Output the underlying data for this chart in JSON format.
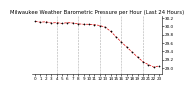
{
  "title": "Milwaukee Weather Barometric Pressure per Hour (Last 24 Hours)",
  "hours": [
    0,
    1,
    2,
    3,
    4,
    5,
    6,
    7,
    8,
    9,
    10,
    11,
    12,
    13,
    14,
    15,
    16,
    17,
    18,
    19,
    20,
    21,
    22,
    23
  ],
  "pressure": [
    30.12,
    30.1,
    30.11,
    30.08,
    30.09,
    30.07,
    30.09,
    30.08,
    30.06,
    30.05,
    30.05,
    30.04,
    30.02,
    29.98,
    29.88,
    29.75,
    29.62,
    29.5,
    29.38,
    29.26,
    29.15,
    29.08,
    29.02,
    29.05
  ],
  "line_color": "#dd0000",
  "marker_color": "#000000",
  "background_color": "#ffffff",
  "grid_color": "#999999",
  "title_fontsize": 3.8,
  "tick_fontsize": 3.0,
  "ylim": [
    28.85,
    30.25
  ],
  "ytick_values": [
    29.0,
    29.2,
    29.4,
    29.6,
    29.8,
    30.0,
    30.2
  ],
  "xtick_every": 4,
  "grid_xticks": [
    4,
    8,
    12,
    16,
    20
  ]
}
